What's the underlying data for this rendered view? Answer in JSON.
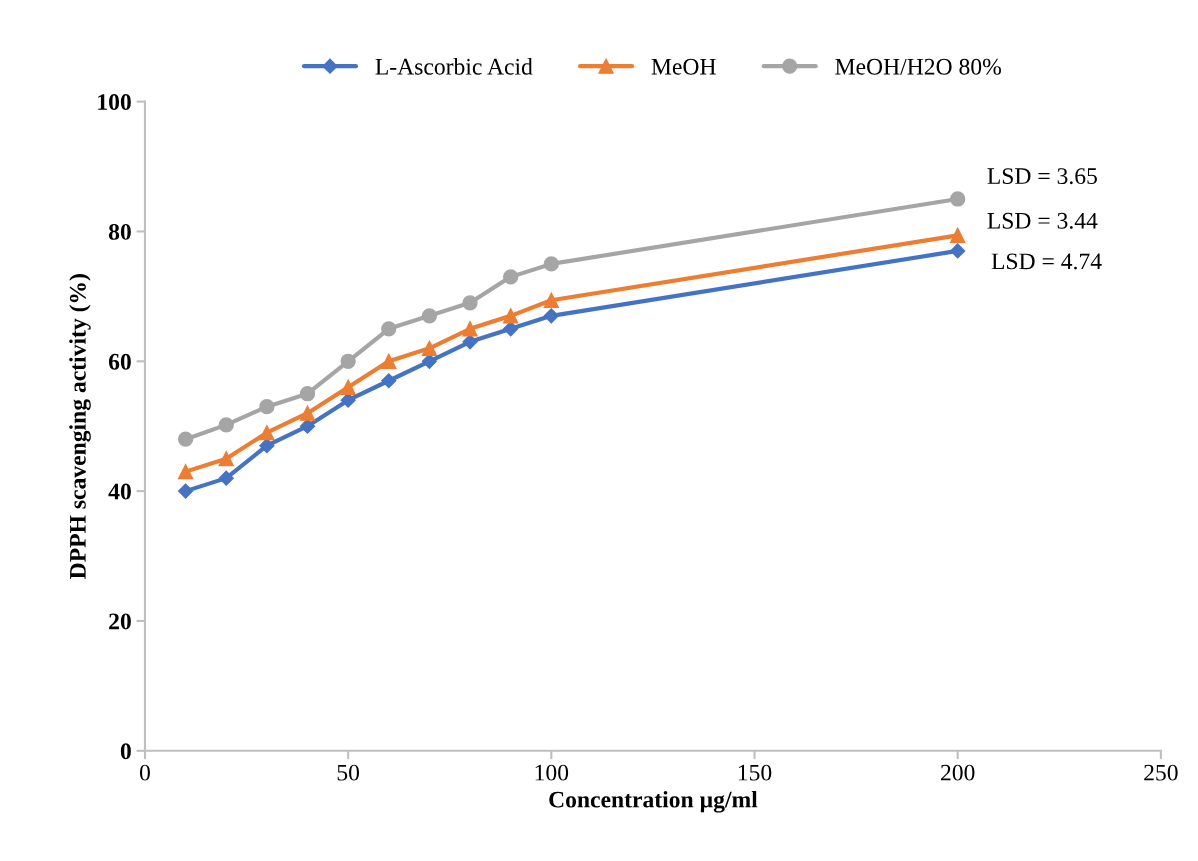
{
  "chart_data": {
    "type": "line",
    "xlabel": "Concentration µg/ml",
    "ylabel": "DPPH scavenging activity (%)",
    "x": [
      10,
      20,
      30,
      40,
      50,
      60,
      70,
      80,
      90,
      100,
      200
    ],
    "series": [
      {
        "name": "L-Ascorbic Acid",
        "color": "#4472c4",
        "marker": "diamond",
        "values": [
          40,
          42,
          47,
          50,
          54,
          57,
          60,
          63,
          65,
          67,
          77
        ]
      },
      {
        "name": "MeOH",
        "color": "#ed7d31",
        "marker": "triangle",
        "values": [
          43,
          45,
          49,
          52,
          56,
          60,
          62,
          65,
          67,
          69.4,
          79.4
        ]
      },
      {
        "name": "MeOH/H2O 80%",
        "color": "#a5a5a5",
        "marker": "circle",
        "values": [
          48,
          50.2,
          53,
          55,
          60,
          65,
          67,
          69,
          73,
          75,
          85
        ]
      }
    ],
    "annotations": [
      "LSD = 3.65",
      "LSD = 3.44",
      "LSD = 4.74"
    ],
    "xlim": [
      0,
      250
    ],
    "xticks": [
      0,
      50,
      100,
      150,
      200,
      250
    ],
    "ylim": [
      0,
      100
    ],
    "yticks": [
      0,
      20,
      40,
      60,
      80,
      100
    ],
    "grid": false,
    "legend": "top",
    "line_style": "solid"
  }
}
